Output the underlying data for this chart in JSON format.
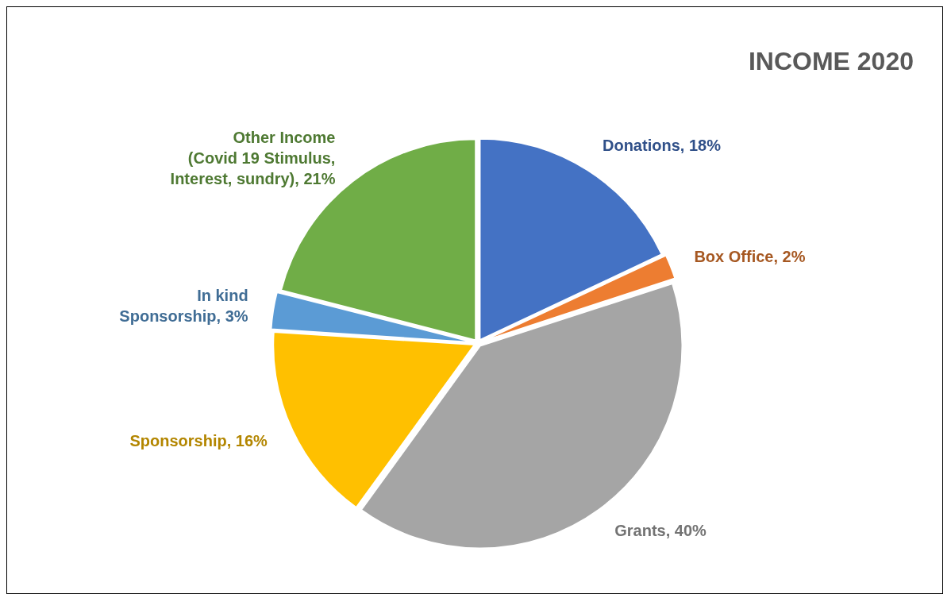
{
  "chart_data": {
    "type": "pie",
    "title": "INCOME 2020",
    "categories": [
      "Donations",
      "Box Office",
      "Grants",
      "Sponsorship",
      "In kind Sponsorship",
      "Other Income (Covid 19 Stimulus, Interest, sundry)"
    ],
    "values": [
      18,
      2,
      40,
      16,
      3,
      21
    ],
    "colors": [
      "#4472c4",
      "#ed7d31",
      "#a5a5a5",
      "#ffc000",
      "#5b9bd5",
      "#70ad47"
    ],
    "value_labels": [
      "18%",
      "2%",
      "40%",
      "16%",
      "3%",
      "21%"
    ]
  }
}
